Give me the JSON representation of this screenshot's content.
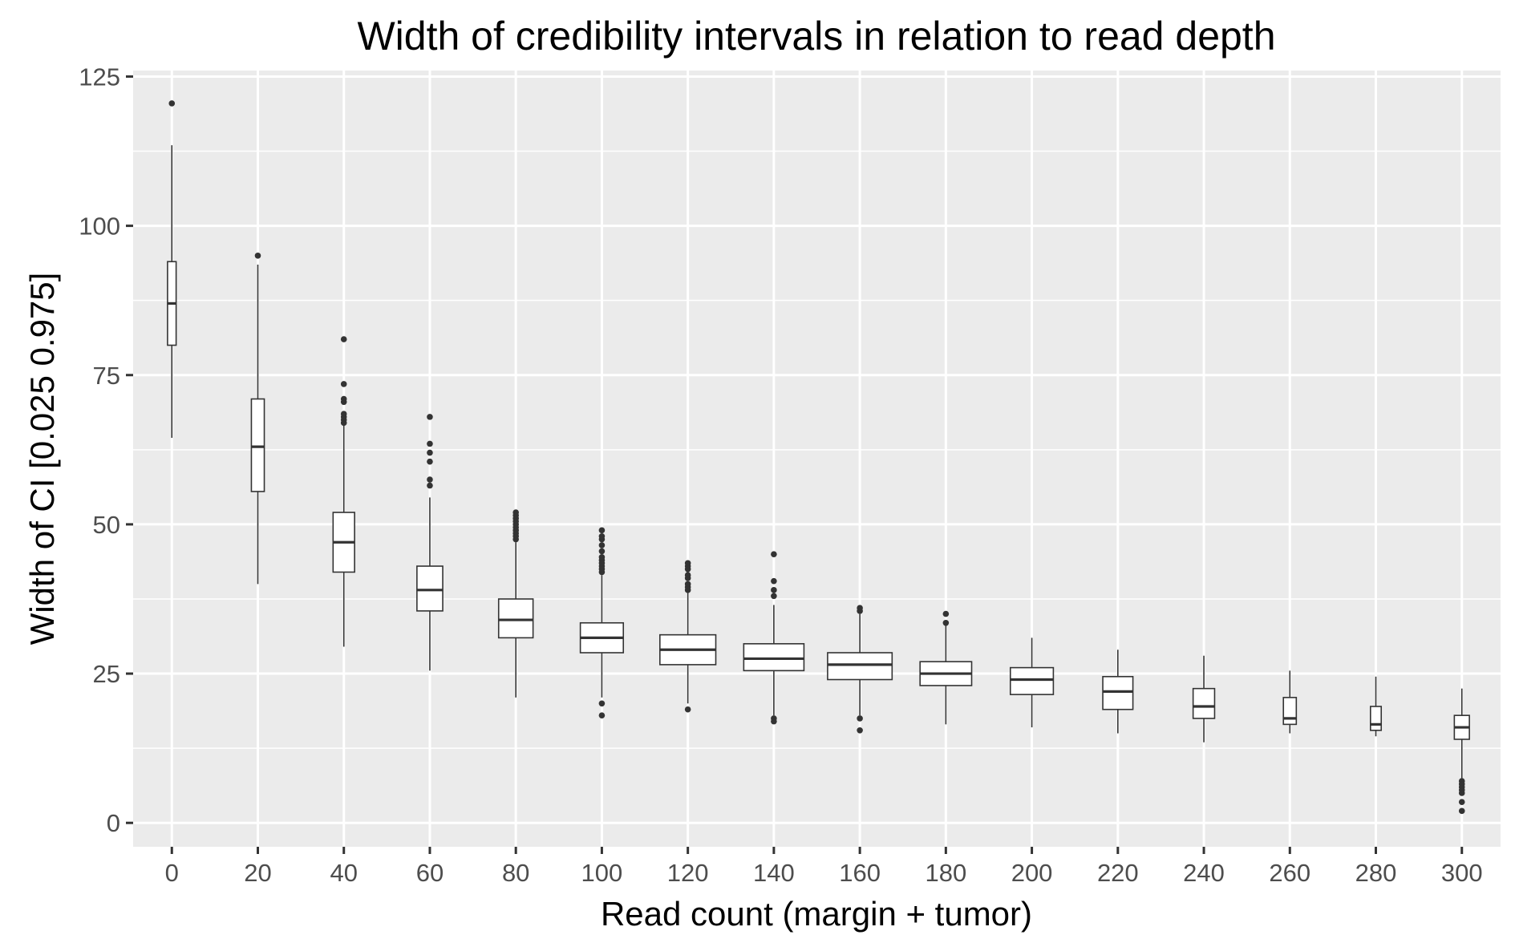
{
  "chart_data": {
    "type": "box",
    "title": "Width of credibility intervals in relation to read depth",
    "xlabel": "Read count (margin + tumor)",
    "ylabel": "Width of CI [0.025 0.975]",
    "xlim": [
      -9,
      309
    ],
    "ylim": [
      -4,
      126
    ],
    "x_ticks": [
      0,
      20,
      40,
      60,
      80,
      100,
      120,
      140,
      160,
      180,
      200,
      220,
      240,
      260,
      280,
      300
    ],
    "y_ticks": [
      0,
      25,
      50,
      75,
      100,
      125
    ],
    "grid": true,
    "colors": {
      "panel": "#ebebeb",
      "grid": "#ffffff",
      "box_fill": "#ffffff",
      "box_line": "#333333",
      "tick_text": "#4d4d4d"
    },
    "boxes": [
      {
        "x": 0,
        "width": 2,
        "lower": 64.5,
        "q1": 80.0,
        "median": 87.0,
        "q3": 94.0,
        "upper": 113.5,
        "outliers": [
          120.5
        ]
      },
      {
        "x": 20,
        "width": 3,
        "lower": 40.0,
        "q1": 55.5,
        "median": 63.0,
        "q3": 71.0,
        "upper": 93.5,
        "outliers": [
          95.0
        ]
      },
      {
        "x": 40,
        "width": 5,
        "lower": 29.5,
        "q1": 42.0,
        "median": 47.0,
        "q3": 52.0,
        "upper": 66.5,
        "outliers": [
          67.0,
          67.5,
          68.0,
          68.5,
          70.5,
          71.0,
          73.5,
          81.0
        ]
      },
      {
        "x": 60,
        "width": 6,
        "lower": 25.5,
        "q1": 35.5,
        "median": 39.0,
        "q3": 43.0,
        "upper": 54.5,
        "outliers": [
          56.5,
          57.5,
          60.5,
          62.0,
          63.5,
          68.0
        ]
      },
      {
        "x": 80,
        "width": 8,
        "lower": 21.0,
        "q1": 31.0,
        "median": 34.0,
        "q3": 37.5,
        "upper": 47.0,
        "outliers": [
          47.5,
          48.0,
          48.5,
          49.0,
          49.5,
          50.0,
          50.5,
          51.0,
          51.5,
          52.0
        ]
      },
      {
        "x": 100,
        "width": 10,
        "lower": 21.0,
        "q1": 28.5,
        "median": 31.0,
        "q3": 33.5,
        "upper": 41.5,
        "outliers": [
          18.0,
          20.0,
          42.0,
          42.5,
          43.0,
          43.5,
          44.0,
          44.5,
          45.5,
          46.5,
          47.5,
          48.0,
          49.0
        ]
      },
      {
        "x": 120,
        "width": 13,
        "lower": 20.0,
        "q1": 26.5,
        "median": 29.0,
        "q3": 31.5,
        "upper": 38.5,
        "outliers": [
          19.0,
          39.0,
          39.5,
          40.0,
          41.0,
          41.5,
          42.5,
          43.0,
          43.5
        ]
      },
      {
        "x": 140,
        "width": 14,
        "lower": 18.0,
        "q1": 25.5,
        "median": 27.5,
        "q3": 30.0,
        "upper": 36.5,
        "outliers": [
          17.5,
          17.0,
          38.0,
          39.0,
          40.5,
          45.0
        ]
      },
      {
        "x": 160,
        "width": 15,
        "lower": 18.0,
        "q1": 24.0,
        "median": 26.5,
        "q3": 28.5,
        "upper": 35.0,
        "outliers": [
          17.5,
          15.5,
          35.5,
          36.0
        ]
      },
      {
        "x": 180,
        "width": 12,
        "lower": 16.5,
        "q1": 23.0,
        "median": 25.0,
        "q3": 27.0,
        "upper": 33.0,
        "outliers": [
          33.5,
          35.0
        ]
      },
      {
        "x": 200,
        "width": 10,
        "lower": 16.0,
        "q1": 21.5,
        "median": 24.0,
        "q3": 26.0,
        "upper": 31.0,
        "outliers": []
      },
      {
        "x": 220,
        "width": 7,
        "lower": 15.0,
        "q1": 19.0,
        "median": 22.0,
        "q3": 24.5,
        "upper": 29.0,
        "outliers": []
      },
      {
        "x": 240,
        "width": 5,
        "lower": 13.5,
        "q1": 17.5,
        "median": 19.5,
        "q3": 22.5,
        "upper": 28.0,
        "outliers": []
      },
      {
        "x": 260,
        "width": 3,
        "lower": 15.0,
        "q1": 16.5,
        "median": 17.5,
        "q3": 21.0,
        "upper": 25.5,
        "outliers": []
      },
      {
        "x": 280,
        "width": 2.5,
        "lower": 14.5,
        "q1": 15.5,
        "median": 16.5,
        "q3": 19.5,
        "upper": 24.5,
        "outliers": []
      },
      {
        "x": 300,
        "width": 3.5,
        "lower": 7.5,
        "q1": 14.0,
        "median": 16.0,
        "q3": 18.0,
        "upper": 22.5,
        "outliers": [
          7.0,
          6.5,
          6.0,
          5.5,
          5.0,
          3.5,
          2.0
        ]
      }
    ]
  }
}
